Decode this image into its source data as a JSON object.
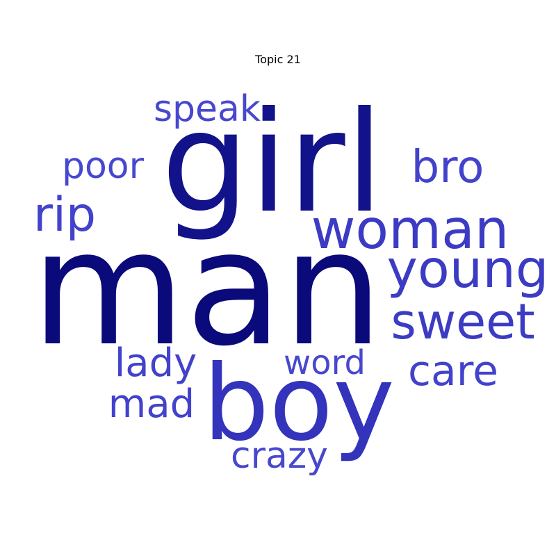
{
  "chart_data": {
    "type": "wordcloud",
    "title": "Topic 21",
    "words": [
      {
        "text": "man",
        "weight": 1.0,
        "color": "#0a0a7a"
      },
      {
        "text": "girl",
        "weight": 0.72,
        "color": "#12128a"
      },
      {
        "text": "boy",
        "weight": 0.62,
        "color": "#3333bb"
      },
      {
        "text": "woman",
        "weight": 0.4,
        "color": "#3b3bc4"
      },
      {
        "text": "young",
        "weight": 0.38,
        "color": "#3b3bc4"
      },
      {
        "text": "sweet",
        "weight": 0.37,
        "color": "#3b3bc4"
      },
      {
        "text": "rip",
        "weight": 0.34,
        "color": "#4242cc"
      },
      {
        "text": "bro",
        "weight": 0.32,
        "color": "#4242cc"
      },
      {
        "text": "care",
        "weight": 0.3,
        "color": "#4242cc"
      },
      {
        "text": "mad",
        "weight": 0.29,
        "color": "#4242cc"
      },
      {
        "text": "lady",
        "weight": 0.29,
        "color": "#4242cc"
      },
      {
        "text": "speak",
        "weight": 0.28,
        "color": "#4747cf"
      },
      {
        "text": "crazy",
        "weight": 0.27,
        "color": "#4747cf"
      },
      {
        "text": "poor",
        "weight": 0.27,
        "color": "#4747cf"
      },
      {
        "text": "word",
        "weight": 0.25,
        "color": "#4747cf"
      }
    ]
  }
}
